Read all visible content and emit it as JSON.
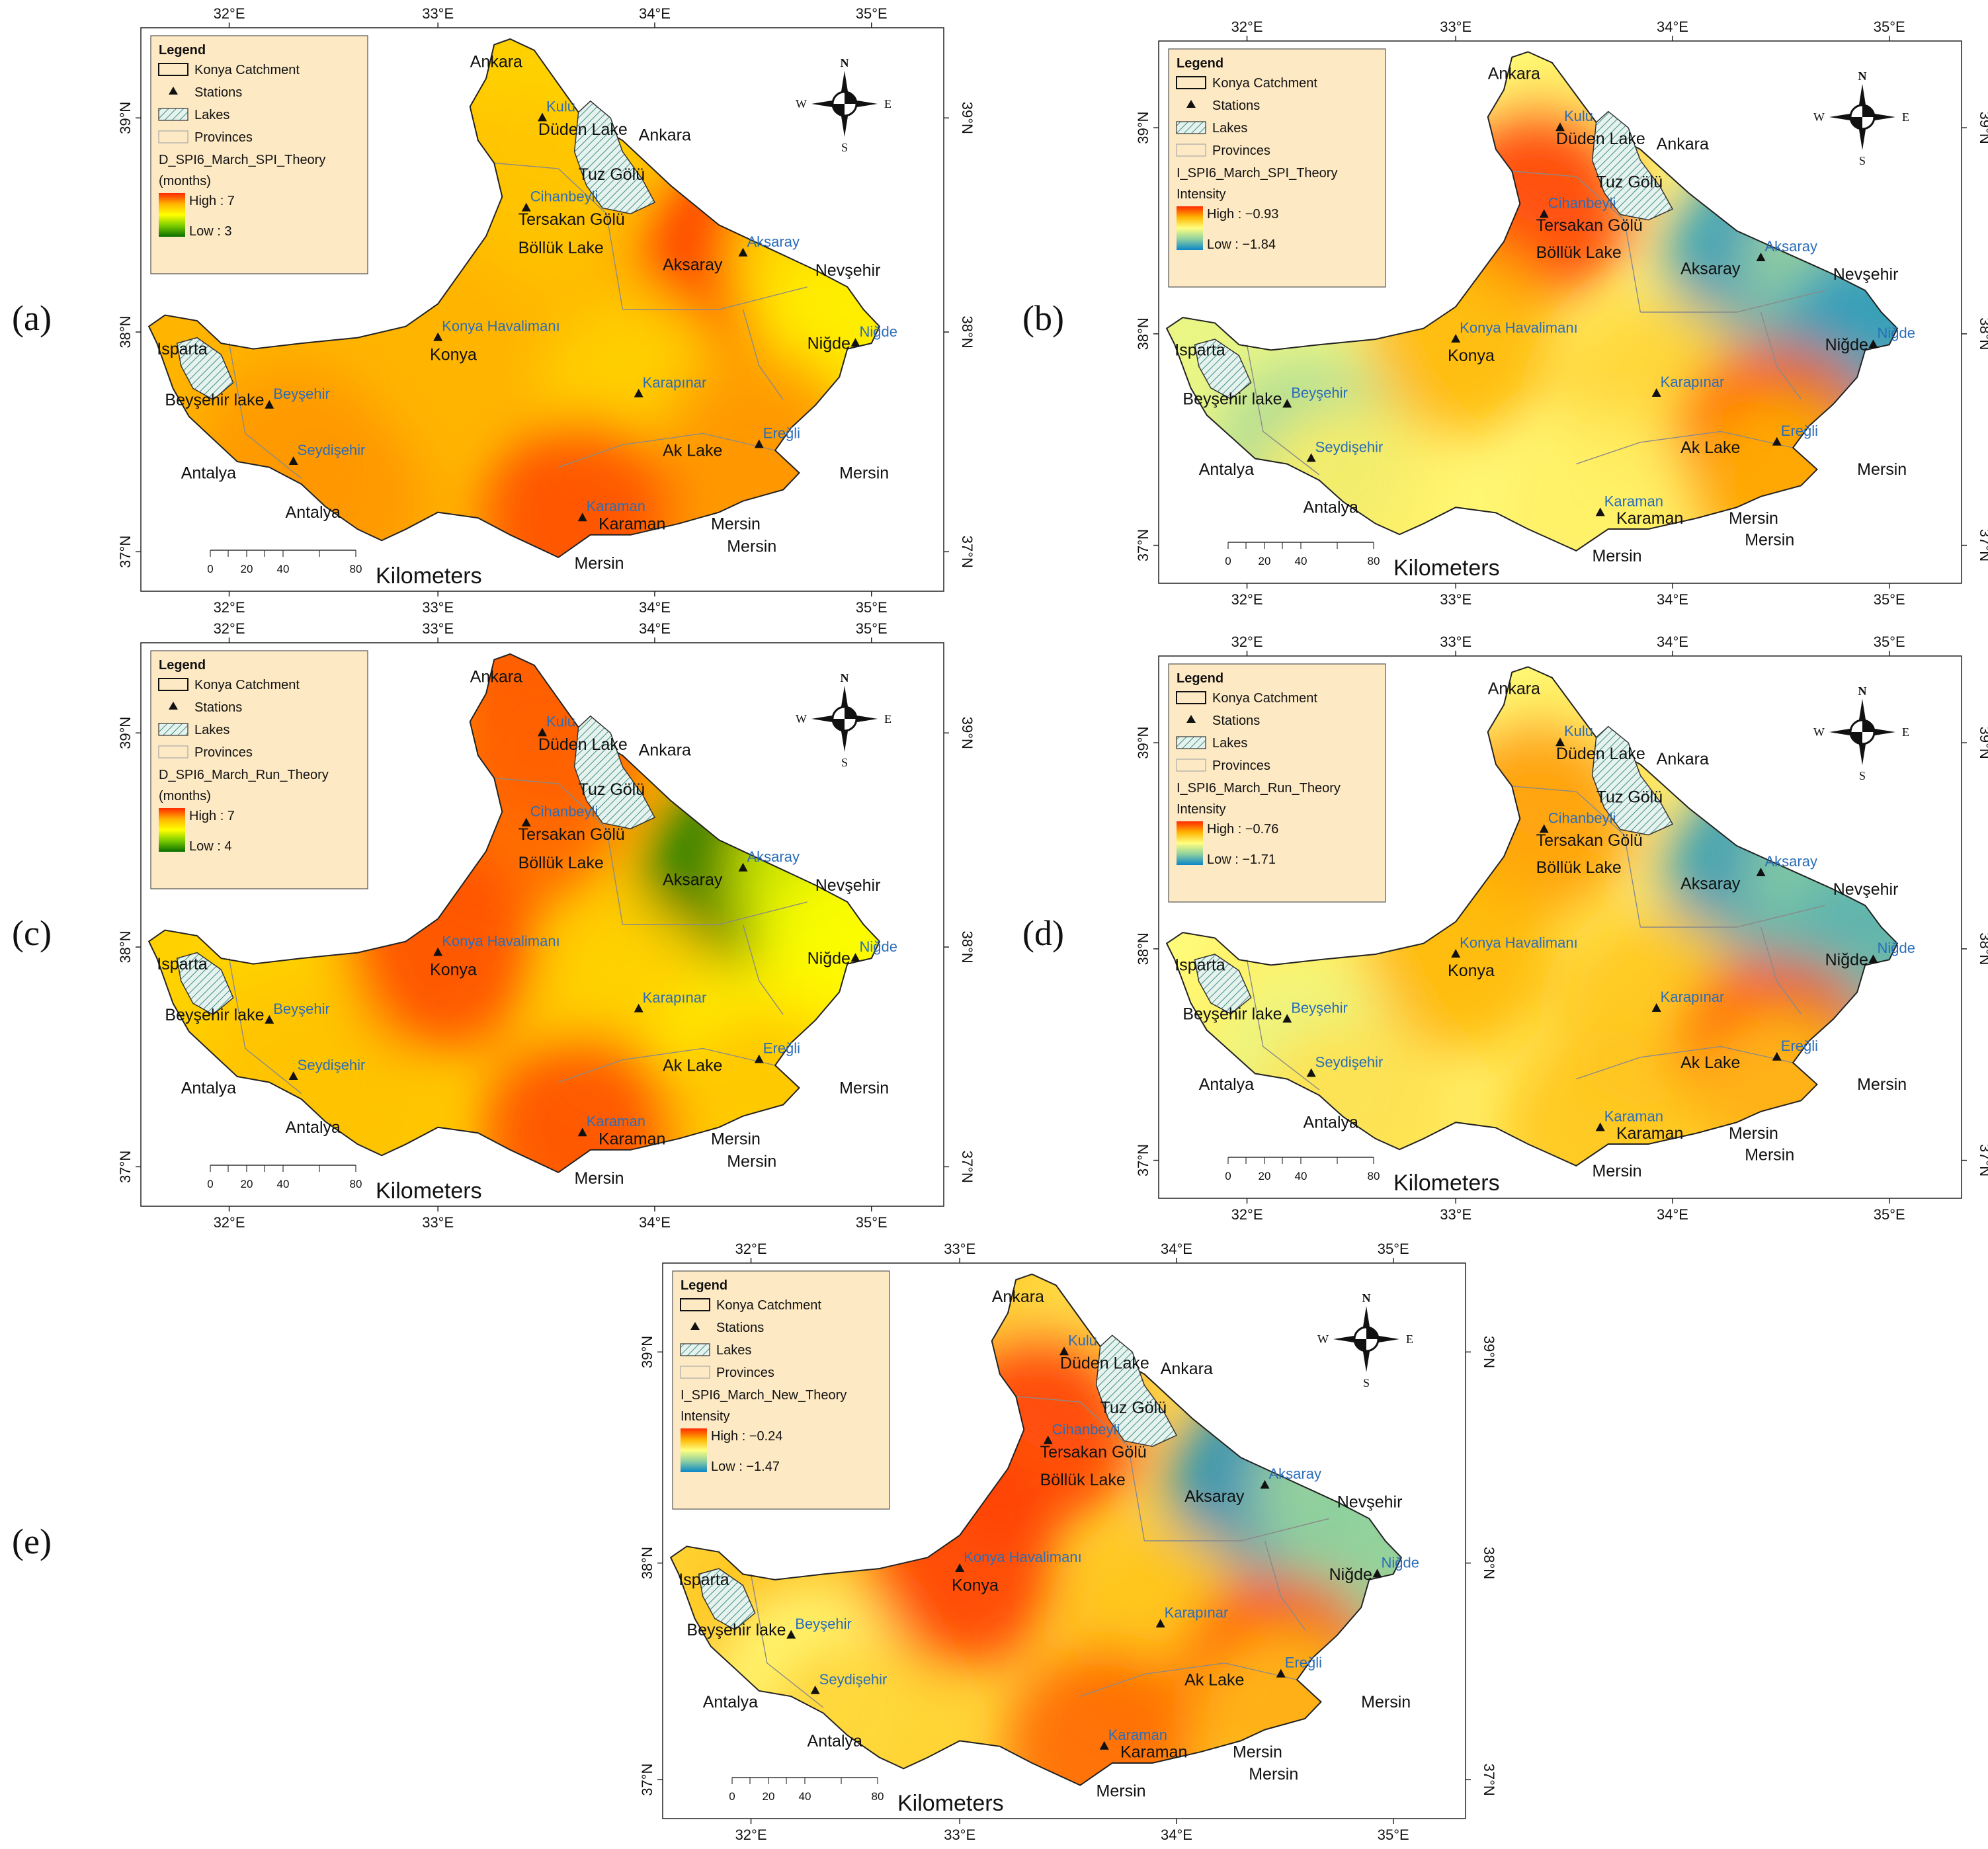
{
  "panels": [
    {
      "id": "a",
      "letter": "(a)",
      "layer": "D_SPI6_March_SPI_Theory",
      "unit": "(months)",
      "high": "High : 7",
      "low": "Low : 3",
      "ramp": [
        "#ff2a00",
        "#ffb400",
        "#ffff00",
        "#7acb00",
        "#0a6e00"
      ],
      "hot": {
        "Ankara": 0.35,
        "Kulu": 0.35,
        "Cihanbeyli": 0.3,
        "Aksaray": 0.02,
        "Nevsehir": 0.45,
        "Konya": 0.25,
        "Nigde": 0.45,
        "Isparta": 0.25,
        "Beysehir": 0.25,
        "Seydisehir": 0.2,
        "Karapinar": 0.35,
        "Eregli": 0.2,
        "Karaman": 0.05,
        "Antalya": 0.2,
        "Mersin": 0.2
      }
    },
    {
      "id": "b",
      "letter": "(b)",
      "layer": "I_SPI6_March_SPI_Theory",
      "unit": "Intensity",
      "high": "High : −0.93",
      "low": "Low : −1.84",
      "ramp": [
        "#ff2a00",
        "#ffb400",
        "#ffff80",
        "#8ed0a0",
        "#0a86c8"
      ],
      "hot": {
        "Ankara": 0.5,
        "Kulu": 0.45,
        "Cihanbeyli": 0.02,
        "Aksaray": 0.95,
        "Nevsehir": 0.7,
        "Konya": 0.25,
        "Nigde": 0.95,
        "Isparta": 0.55,
        "Beysehir": 0.55,
        "Seydisehir": 0.7,
        "Karapinar": 0.35,
        "Eregli": 0.05,
        "Karaman": 0.45,
        "Antalya": 0.45,
        "Mersin": 0.25
      }
    },
    {
      "id": "c",
      "letter": "(c)",
      "layer": "D_SPI6_March_Run_Theory",
      "unit": "(months)",
      "high": "High : 7",
      "low": "Low : 4",
      "ramp": [
        "#ff2a00",
        "#ffb400",
        "#ffff00",
        "#7acb00",
        "#0a6e00"
      ],
      "hot": {
        "Ankara": 0.05,
        "Kulu": 0.1,
        "Cihanbeyli": 0.1,
        "Aksaray": 0.98,
        "Nevsehir": 0.55,
        "Konya": 0.05,
        "Nigde": 0.5,
        "Isparta": 0.35,
        "Beysehir": 0.35,
        "Seydisehir": 0.3,
        "Karapinar": 0.35,
        "Eregli": 0.45,
        "Karaman": 0.05,
        "Antalya": 0.3,
        "Mersin": 0.3
      }
    },
    {
      "id": "d",
      "letter": "(d)",
      "layer": "I_SPI6_March_Run_Theory",
      "unit": "Intensity",
      "high": "High : −0.76",
      "low": "Low : −1.71",
      "ramp": [
        "#ff2a00",
        "#ffb400",
        "#ffff80",
        "#8ed0a0",
        "#0a86c8"
      ],
      "hot": {
        "Ankara": 0.5,
        "Kulu": 0.45,
        "Cihanbeyli": 0.2,
        "Aksaray": 0.95,
        "Nevsehir": 0.75,
        "Konya": 0.25,
        "Nigde": 0.85,
        "Isparta": 0.5,
        "Beysehir": 0.45,
        "Seydisehir": 0.55,
        "Karapinar": 0.3,
        "Eregli": 0.02,
        "Karaman": 0.3,
        "Antalya": 0.4,
        "Mersin": 0.3
      }
    },
    {
      "id": "e",
      "letter": "(e)",
      "layer": "I_SPI6_March_New_Theory",
      "unit": "Intensity",
      "high": "High : −0.24",
      "low": "Low : −1.47",
      "ramp": [
        "#ff2a00",
        "#ffb400",
        "#ffff80",
        "#8ed0a0",
        "#0a86c8"
      ],
      "hot": {
        "Ankara": 0.3,
        "Kulu": 0.4,
        "Cihanbeyli": 0.02,
        "Aksaray": 0.98,
        "Nevsehir": 0.7,
        "Konya": 0.02,
        "Nigde": 0.75,
        "Isparta": 0.35,
        "Beysehir": 0.3,
        "Seydisehir": 0.5,
        "Karapinar": 0.3,
        "Eregli": 0.02,
        "Karaman": 0.1,
        "Antalya": 0.35,
        "Mersin": 0.3
      }
    }
  ],
  "legend": {
    "title": "Legend",
    "items": [
      "Konya Catchment",
      "Stations",
      "Lakes",
      "Provinces"
    ]
  },
  "compass": {
    "n": "N",
    "s": "S",
    "e": "E",
    "w": "W"
  },
  "scalebar": {
    "ticks": [
      "0",
      "20",
      "40",
      "80"
    ],
    "unit": "Kilometers"
  },
  "lon_ticks": [
    "32°E",
    "33°E",
    "34°E",
    "35°E"
  ],
  "lat_ticks": [
    "39°N",
    "38°N",
    "37°N"
  ],
  "stations": [
    {
      "key": "Kulu",
      "name": "Kulu"
    },
    {
      "key": "Cihanbeyli",
      "name": "Cihanbeyli"
    },
    {
      "key": "Aksaray",
      "name": "Aksaray"
    },
    {
      "key": "Konya",
      "name": "Konya Havalimanı"
    },
    {
      "key": "Nigde",
      "name": "Niğde"
    },
    {
      "key": "Beysehir",
      "name": "Beyşehir"
    },
    {
      "key": "Seydisehir",
      "name": "Seydişehir"
    },
    {
      "key": "Karapinar",
      "name": "Karapınar"
    },
    {
      "key": "Eregli",
      "name": "Ereğli"
    },
    {
      "key": "Karaman",
      "name": "Karaman"
    }
  ],
  "places": [
    "Ankara",
    "Düden Lake",
    "Ankara",
    "Tuz Gölü",
    "Tersakan Gölü",
    "Böllük Lake",
    "Aksaray",
    "Nevşehir",
    "Niğde",
    "Konya",
    "Isparta",
    "Beyşehir lake",
    "Antalya",
    "Antalya",
    "Ak Lake",
    "Mersin",
    "Karaman",
    "Mersin",
    "Mersin",
    "Mersin"
  ]
}
